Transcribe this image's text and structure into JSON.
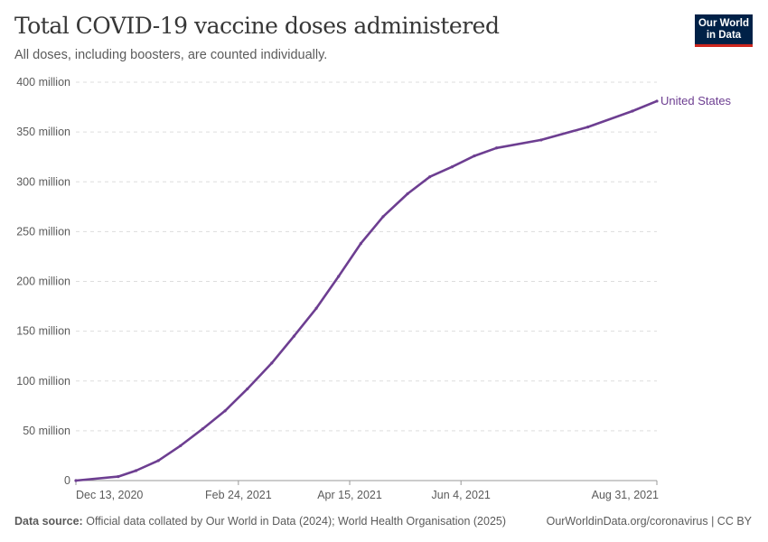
{
  "header": {
    "title": "Total COVID-19 vaccine doses administered",
    "subtitle": "All doses, including boosters, are counted individually.",
    "logo_text": "Our World in Data"
  },
  "footer": {
    "source_label": "Data source:",
    "source_text": "Official data collated by Our World in Data (2024); World Health Organisation (2025)",
    "link": "OurWorldinData.org/coronavirus | CC BY"
  },
  "chart_data": {
    "type": "line",
    "title": "Total COVID-19 vaccine doses administered",
    "xlabel": "",
    "ylabel": "",
    "xlim": [
      "2020-12-13",
      "2021-08-31"
    ],
    "ylim": [
      0,
      400000000
    ],
    "grid": "horizontal dashed",
    "x_ticks": [
      {
        "date": "2020-12-13",
        "label": "Dec 13, 2020"
      },
      {
        "date": "2021-02-24",
        "label": "Feb 24, 2021"
      },
      {
        "date": "2021-04-15",
        "label": "Apr 15, 2021"
      },
      {
        "date": "2021-06-04",
        "label": "Jun 4, 2021"
      },
      {
        "date": "2021-08-31",
        "label": "Aug 31, 2021"
      }
    ],
    "y_ticks": [
      {
        "value": 0,
        "label": "0"
      },
      {
        "value": 50000000,
        "label": "50 million"
      },
      {
        "value": 100000000,
        "label": "100 million"
      },
      {
        "value": 150000000,
        "label": "150 million"
      },
      {
        "value": 200000000,
        "label": "200 million"
      },
      {
        "value": 250000000,
        "label": "250 million"
      },
      {
        "value": 300000000,
        "label": "300 million"
      },
      {
        "value": 350000000,
        "label": "350 million"
      },
      {
        "value": 400000000,
        "label": "400 million"
      }
    ],
    "series": [
      {
        "name": "United States",
        "color": "#6D3E91",
        "x": [
          "2020-12-13",
          "2021-01-01",
          "2021-01-09",
          "2021-01-19",
          "2021-01-29",
          "2021-02-08",
          "2021-02-18",
          "2021-02-28",
          "2021-03-11",
          "2021-03-21",
          "2021-03-31",
          "2021-04-10",
          "2021-04-20",
          "2021-04-30",
          "2021-05-11",
          "2021-05-21",
          "2021-05-31",
          "2021-06-10",
          "2021-06-20",
          "2021-07-10",
          "2021-07-31",
          "2021-08-20",
          "2021-08-31"
        ],
        "y": [
          0,
          4000000,
          10000000,
          20000000,
          35000000,
          52000000,
          70000000,
          92000000,
          118000000,
          145000000,
          173000000,
          205000000,
          238000000,
          265000000,
          288000000,
          305000000,
          315000000,
          326000000,
          334000000,
          342000000,
          355000000,
          371000000,
          381000000
        ]
      }
    ]
  }
}
